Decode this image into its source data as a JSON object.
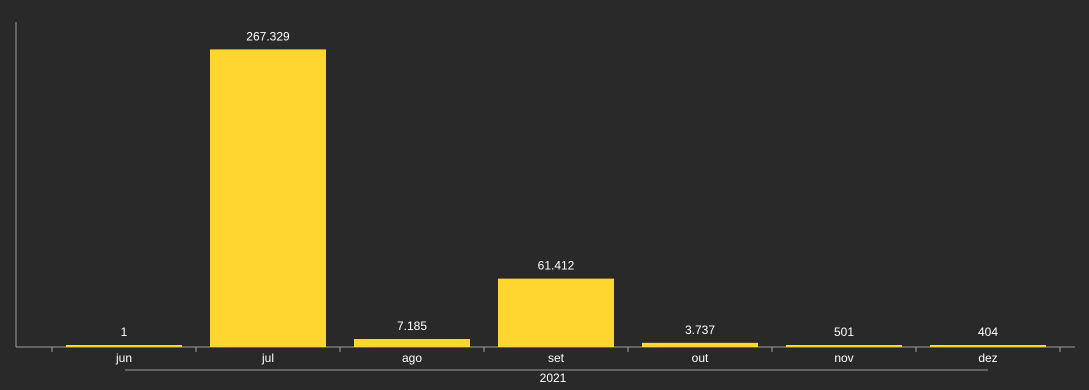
{
  "chart_data": {
    "type": "bar",
    "categories": [
      "jun",
      "jul",
      "ago",
      "set",
      "out",
      "nov",
      "dez"
    ],
    "group_label": "2021",
    "values": [
      1,
      267329,
      7185,
      61412,
      3737,
      501,
      404
    ],
    "value_labels": [
      "1",
      "267.329",
      "7.185",
      "61.412",
      "3.737",
      "501",
      "404"
    ],
    "ylim": [
      0,
      300000
    ],
    "grid": false,
    "bar_color": "#FFD530",
    "axis_color": "#9e9e9e",
    "background": "#292929"
  }
}
